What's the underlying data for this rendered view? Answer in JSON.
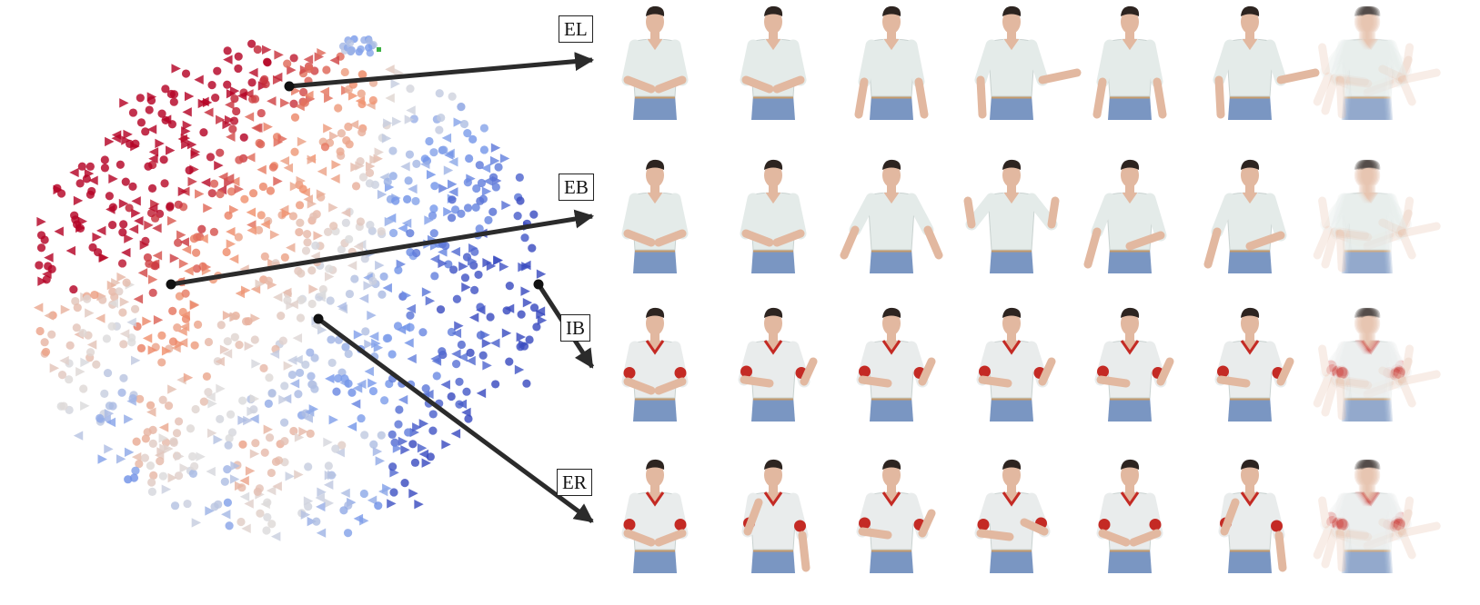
{
  "labels": [
    {
      "id": "el",
      "text": "EL"
    },
    {
      "id": "eb",
      "text": "EB"
    },
    {
      "id": "ib",
      "text": "IB"
    },
    {
      "id": "er",
      "text": "ER"
    }
  ],
  "rows": [
    {
      "id": "el",
      "shirt": "#e4ebe9",
      "collar": "#e4ebe9",
      "sleeve_band": "#e4ebe9",
      "arms": [
        "fold",
        "fold",
        "down",
        "out",
        "down",
        "out",
        "blur"
      ]
    },
    {
      "id": "eb",
      "shirt": "#e4ebe9",
      "collar": "#e4ebe9",
      "sleeve_band": "#e4ebe9",
      "arms": [
        "fold",
        "fold",
        "spread",
        "up",
        "side",
        "side",
        "blur"
      ]
    },
    {
      "id": "ib",
      "shirt": "#e9ecec",
      "collar": "#c42a24",
      "sleeve_band": "#c42a24",
      "arms": [
        "fold",
        "cross",
        "cross",
        "cross",
        "cross",
        "cross",
        "blur"
      ]
    },
    {
      "id": "er",
      "shirt": "#e9ecec",
      "collar": "#c42a24",
      "sleeve_band": "#c42a24",
      "arms": [
        "fold",
        "face",
        "cross",
        "chest",
        "fold",
        "face",
        "blur"
      ]
    }
  ],
  "colors": {
    "red": "#b40426",
    "blue": "#3b4cc0",
    "neutral": "#dddcdc",
    "arrow": "#2b2b2b",
    "skin": "#e2b8a0",
    "hair": "#2d2420",
    "pants": "#7a96c2"
  },
  "icon": "figure-icon"
}
